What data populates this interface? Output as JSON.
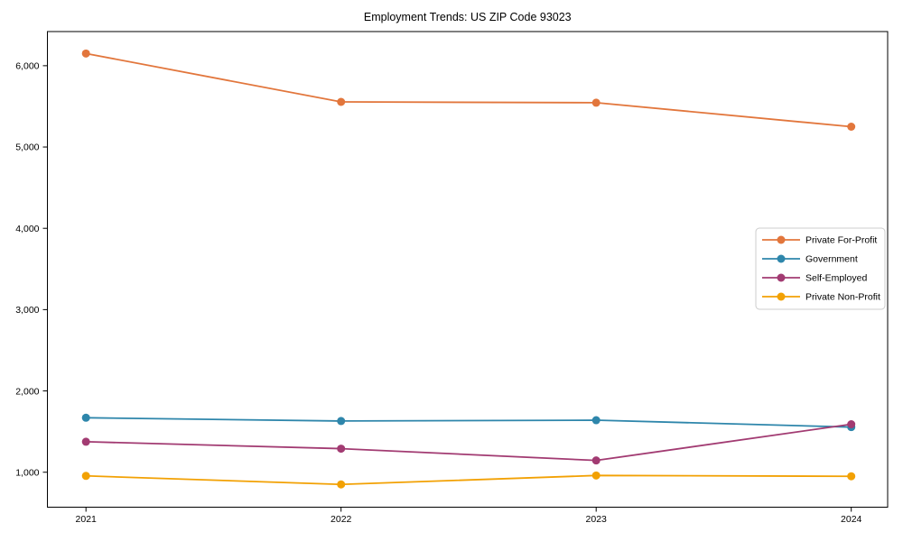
{
  "figure": {
    "background": "#ffffff",
    "axes_color": "#000000",
    "tick_label_color": "#000000"
  },
  "chart_data": {
    "type": "line",
    "title": "Employment Trends: US ZIP Code 93023",
    "xlabel": "",
    "ylabel": "",
    "x_categories": [
      "2021",
      "2022",
      "2023",
      "2024"
    ],
    "y_ticks": [
      1000,
      2000,
      3000,
      4000,
      5000,
      6000
    ],
    "y_tick_labels": [
      "1,000",
      "2,000",
      "3,000",
      "4,000",
      "5,000",
      "6,000"
    ],
    "ylim": [
      570,
      6420
    ],
    "grid": false,
    "legend_position": "center-right",
    "legend_border_color": "#cccccc",
    "series": [
      {
        "name": "Private For-Profit",
        "color": "#E2763C",
        "values": [
          6150,
          5555,
          5545,
          5250
        ]
      },
      {
        "name": "Government",
        "color": "#2E86AB",
        "values": [
          1670,
          1630,
          1640,
          1555
        ]
      },
      {
        "name": "Self-Employed",
        "color": "#A23B72",
        "values": [
          1375,
          1290,
          1145,
          1590
        ]
      },
      {
        "name": "Private Non-Profit",
        "color": "#F2A104",
        "values": [
          955,
          850,
          960,
          950
        ]
      }
    ]
  }
}
